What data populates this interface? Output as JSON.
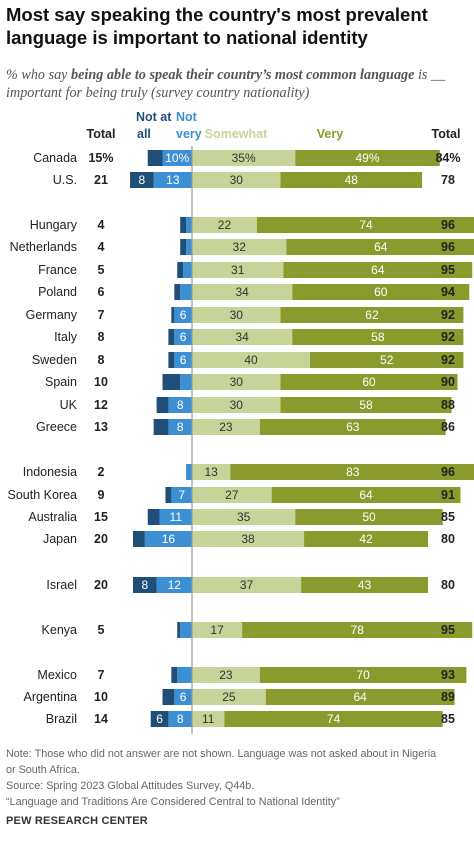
{
  "title": "Most say speaking the country's most prevalent language is important to national identity",
  "subtitle_part1": "% who say ",
  "subtitle_bold": "being able to speak their country’s most common language",
  "subtitle_part2": " is __ important for being truly (survey country nationality)",
  "headers": {
    "total_left": "Total",
    "not_at_all": "Not at all",
    "not_very": "Not very",
    "somewhat": "Somewhat",
    "very": "Very",
    "total_right": "Total"
  },
  "colors": {
    "not_at_all": "#1f4e79",
    "not_very": "#3d8fd4",
    "somewhat": "#c6d49a",
    "very": "#8a9a2c",
    "divider": "#9a9a9a"
  },
  "chart_data": {
    "type": "bar",
    "orientation": "diverging-stacked-horizontal",
    "series_names": [
      "Not at all",
      "Not very",
      "Somewhat",
      "Very"
    ],
    "rows": [
      {
        "country": "Canada",
        "total_neg": "15%",
        "not_at_all": 5,
        "not_very": 10,
        "not_very_label": "10%",
        "somewhat": 35,
        "somewhat_label": "35%",
        "very": 49,
        "very_label": "49%",
        "total_pos": "84%"
      },
      {
        "country": "U.S.",
        "total_neg": "21",
        "not_at_all": 8,
        "not_very": 13,
        "not_at_all_label": "8",
        "not_very_label": "13",
        "somewhat": 30,
        "somewhat_label": "30",
        "very": 48,
        "very_label": "48",
        "total_pos": "78"
      },
      {
        "country": "Hungary",
        "total_neg": "4",
        "not_at_all": 2,
        "not_very": 2,
        "somewhat": 22,
        "somewhat_label": "22",
        "very": 74,
        "very_label": "74",
        "total_pos": "96"
      },
      {
        "country": "Netherlands",
        "total_neg": "4",
        "not_at_all": 2,
        "not_very": 2,
        "somewhat": 32,
        "somewhat_label": "32",
        "very": 64,
        "very_label": "64",
        "total_pos": "96"
      },
      {
        "country": "France",
        "total_neg": "5",
        "not_at_all": 2,
        "not_very": 3,
        "somewhat": 31,
        "somewhat_label": "31",
        "very": 64,
        "very_label": "64",
        "total_pos": "95"
      },
      {
        "country": "Poland",
        "total_neg": "6",
        "not_at_all": 2,
        "not_very": 4,
        "somewhat": 34,
        "somewhat_label": "34",
        "very": 60,
        "very_label": "60",
        "total_pos": "94"
      },
      {
        "country": "Germany",
        "total_neg": "7",
        "not_at_all": 1,
        "not_very": 6,
        "not_very_label": "6",
        "somewhat": 30,
        "somewhat_label": "30",
        "very": 62,
        "very_label": "62",
        "total_pos": "92"
      },
      {
        "country": "Italy",
        "total_neg": "8",
        "not_at_all": 2,
        "not_very": 6,
        "not_very_label": "6",
        "somewhat": 34,
        "somewhat_label": "34",
        "very": 58,
        "very_label": "58",
        "total_pos": "92"
      },
      {
        "country": "Sweden",
        "total_neg": "8",
        "not_at_all": 2,
        "not_very": 6,
        "not_very_label": "6",
        "somewhat": 40,
        "somewhat_label": "40",
        "very": 52,
        "very_label": "52",
        "total_pos": "92"
      },
      {
        "country": "Spain",
        "total_neg": "10",
        "not_at_all": 6,
        "not_very": 4,
        "somewhat": 30,
        "somewhat_label": "30",
        "very": 60,
        "very_label": "60",
        "total_pos": "90"
      },
      {
        "country": "UK",
        "total_neg": "12",
        "not_at_all": 4,
        "not_very": 8,
        "not_very_label": "8",
        "somewhat": 30,
        "somewhat_label": "30",
        "very": 58,
        "very_label": "58",
        "total_pos": "88"
      },
      {
        "country": "Greece",
        "total_neg": "13",
        "not_at_all": 5,
        "not_very": 8,
        "not_very_label": "8",
        "somewhat": 23,
        "somewhat_label": "23",
        "very": 63,
        "very_label": "63",
        "total_pos": "86"
      },
      {
        "country": "Indonesia",
        "total_neg": "2",
        "not_at_all": 0,
        "not_very": 2,
        "somewhat": 13,
        "somewhat_label": "13",
        "very": 83,
        "very_label": "83",
        "total_pos": "96"
      },
      {
        "country": "South Korea",
        "total_neg": "9",
        "not_at_all": 2,
        "not_very": 7,
        "not_very_label": "7",
        "somewhat": 27,
        "somewhat_label": "27",
        "very": 64,
        "very_label": "64",
        "total_pos": "91"
      },
      {
        "country": "Australia",
        "total_neg": "15",
        "not_at_all": 4,
        "not_very": 11,
        "not_very_label": "11",
        "somewhat": 35,
        "somewhat_label": "35",
        "very": 50,
        "very_label": "50",
        "total_pos": "85"
      },
      {
        "country": "Japan",
        "total_neg": "20",
        "not_at_all": 4,
        "not_very": 16,
        "not_very_label": "16",
        "somewhat": 38,
        "somewhat_label": "38",
        "very": 42,
        "very_label": "42",
        "total_pos": "80"
      },
      {
        "country": "Israel",
        "total_neg": "20",
        "not_at_all": 8,
        "not_very": 12,
        "not_at_all_label": "8",
        "not_very_label": "12",
        "somewhat": 37,
        "somewhat_label": "37",
        "very": 43,
        "very_label": "43",
        "total_pos": "80"
      },
      {
        "country": "Kenya",
        "total_neg": "5",
        "not_at_all": 1,
        "not_very": 4,
        "somewhat": 17,
        "somewhat_label": "17",
        "very": 78,
        "very_label": "78",
        "total_pos": "95"
      },
      {
        "country": "Mexico",
        "total_neg": "7",
        "not_at_all": 2,
        "not_very": 5,
        "somewhat": 23,
        "somewhat_label": "23",
        "very": 70,
        "very_label": "70",
        "total_pos": "93"
      },
      {
        "country": "Argentina",
        "total_neg": "10",
        "not_at_all": 4,
        "not_very": 6,
        "not_very_label": "6",
        "somewhat": 25,
        "somewhat_label": "25",
        "very": 64,
        "very_label": "64",
        "total_pos": "89"
      },
      {
        "country": "Brazil",
        "total_neg": "14",
        "not_at_all": 6,
        "not_very": 8,
        "not_at_all_label": "6",
        "not_very_label": "8",
        "somewhat": 11,
        "somewhat_label": "11",
        "very": 74,
        "very_label": "74",
        "total_pos": "85"
      }
    ]
  },
  "notes": {
    "note": "Note: Those who did not answer are not shown. Language was not asked about in Nigeria or South Africa.",
    "source": "Source: Spring 2023 Global Attitudes Survey, Q44b.",
    "report": "“Language and Traditions Are Considered Central to National Identity”"
  },
  "brand": "PEW RESEARCH CENTER"
}
